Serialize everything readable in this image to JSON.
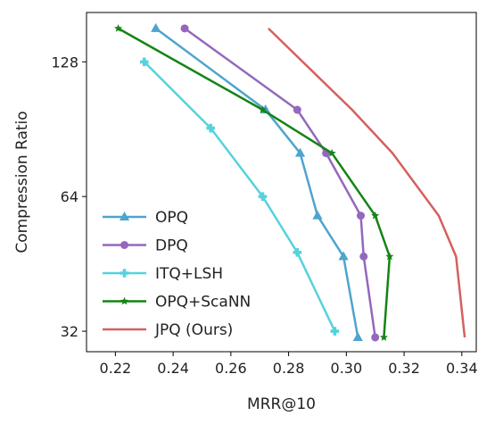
{
  "chart_data": {
    "type": "line",
    "xlabel": "MRR@10",
    "ylabel": "Compression Ratio",
    "xlim": [
      0.21,
      0.345
    ],
    "ylim": [
      28.8,
      165
    ],
    "yscale": "log2",
    "xticks": [
      0.22,
      0.24,
      0.26,
      0.28,
      0.3,
      0.32,
      0.34
    ],
    "xtick_labels": [
      "0.22",
      "0.24",
      "0.26",
      "0.28",
      "0.30",
      "0.32",
      "0.34"
    ],
    "yticks": [
      32,
      64,
      128
    ],
    "ytick_labels": [
      "32",
      "64",
      "128"
    ],
    "grid": false,
    "legend_position": "lower-left",
    "series": [
      {
        "name": "OPQ",
        "color": "#4ea4ce",
        "marker": "triangle",
        "x": [
          0.234,
          0.272,
          0.284,
          0.29,
          0.299,
          0.304
        ],
        "y": [
          152,
          100,
          80,
          58,
          47,
          31
        ]
      },
      {
        "name": "DPQ",
        "color": "#9467bd",
        "marker": "circle",
        "x": [
          0.244,
          0.283,
          0.293,
          0.305,
          0.306,
          0.31
        ],
        "y": [
          152,
          100,
          80,
          58,
          47,
          31
        ]
      },
      {
        "name": "ITQ+LSH",
        "color": "#55d3dc",
        "marker": "plus",
        "x": [
          0.23,
          0.253,
          0.271,
          0.283,
          0.296
        ],
        "y": [
          128,
          91,
          64,
          48,
          32
        ]
      },
      {
        "name": "OPQ+ScaNN",
        "color": "#148414",
        "marker": "star",
        "x": [
          0.221,
          0.271,
          0.295,
          0.31,
          0.315,
          0.313
        ],
        "y": [
          152,
          100,
          80,
          58,
          47,
          31
        ]
      },
      {
        "name": "JPQ (Ours)",
        "color": "#d65f5f",
        "marker": "none",
        "x": [
          0.273,
          0.302,
          0.316,
          0.332,
          0.338,
          0.341
        ],
        "y": [
          152,
          100,
          80,
          58,
          47,
          31
        ]
      }
    ]
  }
}
